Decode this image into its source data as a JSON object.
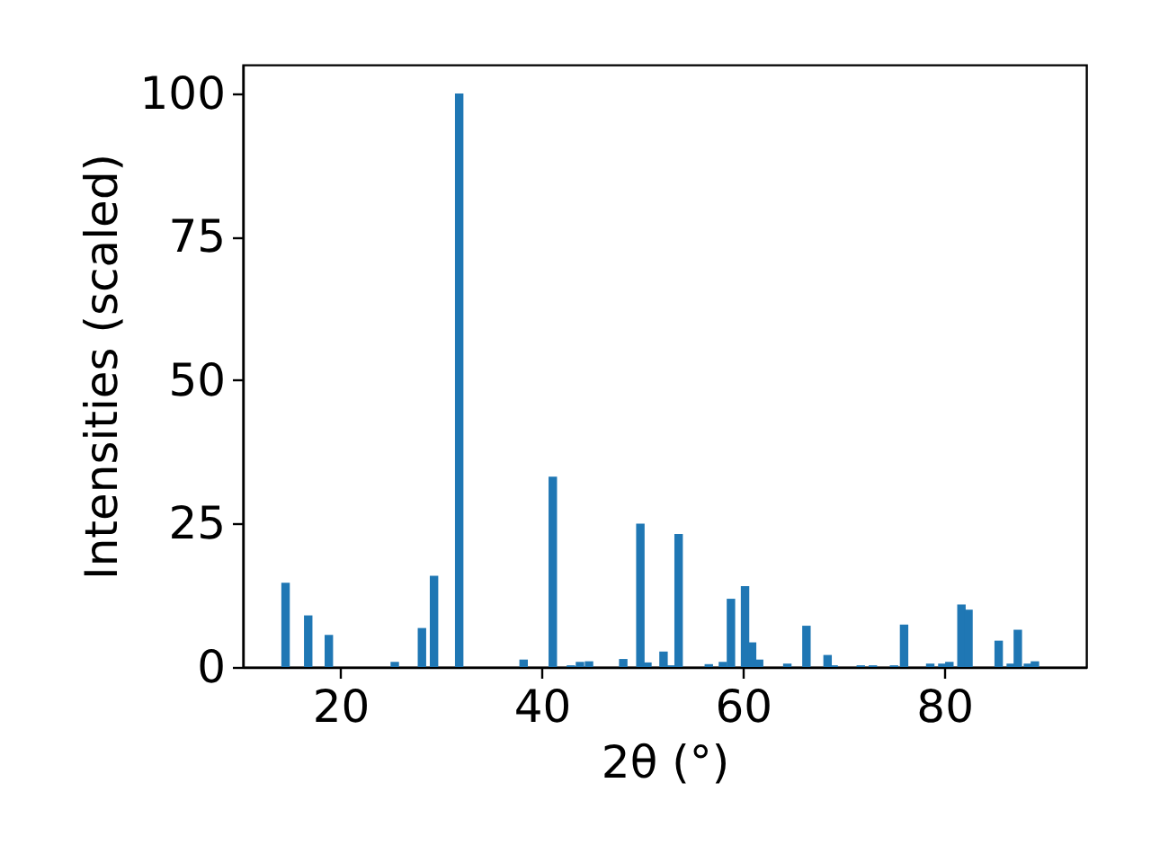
{
  "chart_data": {
    "type": "bar",
    "xlabel": "2θ (°)",
    "ylabel": "Intensities (scaled)",
    "x": [
      14.55,
      16.8,
      18.85,
      25.4,
      28.1,
      29.3,
      31.8,
      38.2,
      41.1,
      42.9,
      43.8,
      44.7,
      48.1,
      49.8,
      50.5,
      52.1,
      52.8,
      53.6,
      56.6,
      58.0,
      58.8,
      60.2,
      60.9,
      61.6,
      64.4,
      66.3,
      68.4,
      69.0,
      71.7,
      72.9,
      75.0,
      76.0,
      78.6,
      79.8,
      80.5,
      81.7,
      82.4,
      85.4,
      86.6,
      87.3,
      88.3,
      89.0
    ],
    "series": [
      {
        "color": "#1f77b4",
        "values": [
          14.7,
          9.0,
          5.6,
          0.9,
          6.8,
          15.9,
          100,
          1.3,
          33.2,
          0.3,
          0.9,
          1.0,
          1.4,
          25.0,
          0.8,
          2.7,
          0.3,
          23.2,
          0.5,
          0.9,
          11.9,
          14.1,
          4.3,
          1.3,
          0.6,
          7.2,
          2.1,
          0.3,
          0.3,
          0.3,
          0.3,
          7.4,
          0.6,
          0.6,
          0.9,
          10.9,
          10.0,
          4.6,
          0.6,
          6.5,
          0.6,
          1.0
        ]
      }
    ],
    "xlim": [
      10.3,
      94.1
    ],
    "ylim": [
      0,
      105
    ],
    "xticks": [
      20,
      40,
      60,
      80
    ],
    "yticks": [
      0,
      25,
      50,
      75,
      100
    ],
    "grid": false,
    "legend": false
  }
}
